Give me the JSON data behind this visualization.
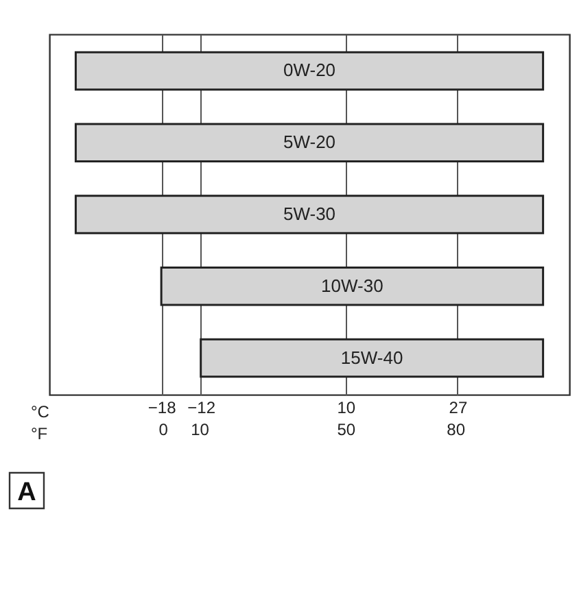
{
  "chart_data": {
    "type": "bar",
    "orientation": "horizontal",
    "categories": [
      "0W-20",
      "5W-20",
      "5W-30",
      "10W-30",
      "15W-40"
    ],
    "base": [
      -31,
      -31,
      -31,
      -18,
      -12
    ],
    "values": [
      71,
      71,
      71,
      58,
      52
    ],
    "color": "#d4d4d4",
    "xlim": [
      -35,
      44
    ],
    "xticks": [
      -18,
      -12,
      10,
      27
    ],
    "xlabel": "°C",
    "x2lim": [
      -31,
      111.2
    ],
    "x2ticks": [
      0,
      10,
      50,
      80
    ],
    "x2label": "°F",
    "grid": "x",
    "tick_labels": "x",
    "annotations": [
      "A"
    ]
  }
}
